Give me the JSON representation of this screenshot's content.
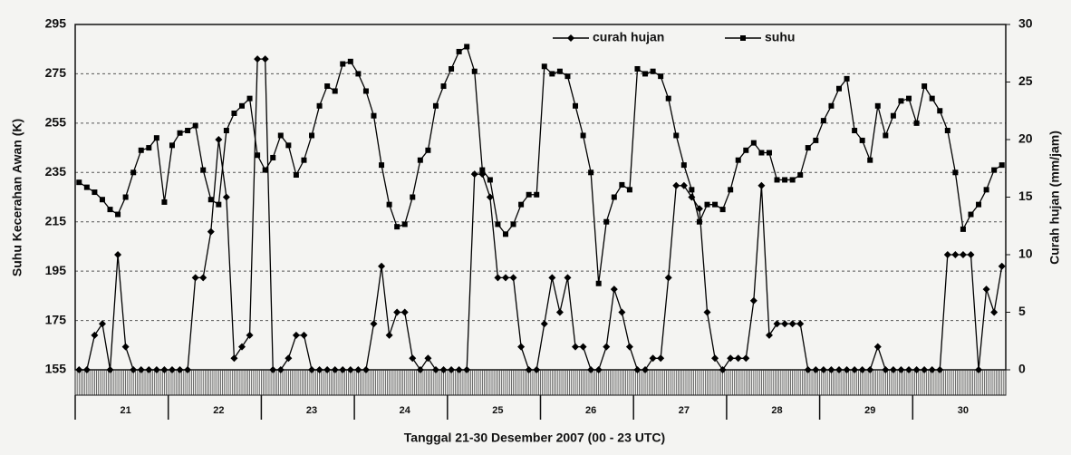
{
  "chart_data": {
    "type": "line",
    "x_label": "Tanggal 21-30 Desember 2007 (00 - 23 UTC)",
    "y_label": "Suhu Kecerahan Awan (K)",
    "y2_label": "Curah hujan (mm/jam)",
    "categories": [
      null,
      null,
      null,
      null,
      null,
      null,
      "21",
      null,
      null,
      null,
      null,
      null,
      null,
      null,
      null,
      null,
      null,
      null,
      "22",
      null,
      null,
      null,
      null,
      null,
      null,
      null,
      null,
      null,
      null,
      null,
      "23",
      null,
      null,
      null,
      null,
      null,
      null,
      null,
      null,
      null,
      null,
      null,
      "24",
      null,
      null,
      null,
      null,
      null,
      null,
      null,
      null,
      null,
      null,
      null,
      "25",
      null,
      null,
      null,
      null,
      null,
      null,
      null,
      null,
      null,
      null,
      null,
      "26",
      null,
      null,
      null,
      null,
      null,
      null,
      null,
      null,
      null,
      null,
      null,
      "27",
      null,
      null,
      null,
      null,
      null,
      null,
      null,
      null,
      null,
      null,
      null,
      "28",
      null,
      null,
      null,
      null,
      null,
      null,
      null,
      null,
      null,
      null,
      null,
      "29",
      null,
      null,
      null,
      null,
      null,
      null,
      null,
      null,
      null,
      null,
      null,
      "30",
      null,
      null,
      null,
      null,
      null
    ],
    "series": [
      {
        "name": "curah hujan",
        "color": "#000000",
        "marker": "diamond",
        "axis": "y2",
        "values": [
          0,
          0,
          3,
          4,
          0,
          10,
          2,
          0,
          0,
          0,
          0,
          0,
          0,
          0,
          0,
          8,
          8,
          12,
          20,
          15,
          1,
          2,
          3,
          27,
          27,
          0,
          0,
          1,
          3,
          3,
          0,
          0,
          0,
          0,
          0,
          0,
          0,
          0,
          4,
          9,
          3,
          5,
          5,
          1,
          0,
          1,
          0,
          0,
          0,
          0,
          0,
          17,
          17,
          15,
          8,
          8,
          8,
          2,
          0,
          0,
          4,
          8,
          5,
          8,
          2,
          2,
          0,
          0,
          2,
          7,
          5,
          2,
          0,
          0,
          1,
          1,
          8,
          16,
          16,
          15,
          14,
          5,
          1,
          0,
          1,
          1,
          1,
          6,
          16,
          3,
          4,
          4,
          4,
          4,
          0,
          0,
          0,
          0,
          0,
          0,
          0,
          0,
          0,
          2,
          0,
          0,
          0,
          0,
          0,
          0,
          0,
          0,
          10,
          10,
          10,
          10,
          0,
          7,
          5,
          9
        ]
      },
      {
        "name": "suhu",
        "color": "#000000",
        "marker": "square",
        "axis": "y",
        "values": [
          231,
          229,
          227,
          224,
          220,
          218,
          225,
          235,
          244,
          245,
          249,
          223,
          246,
          251,
          252,
          254,
          236,
          224,
          222,
          252,
          259,
          262,
          265,
          242,
          236,
          241,
          250,
          246,
          234,
          240,
          250,
          262,
          270,
          268,
          279,
          280,
          275,
          268,
          258,
          238,
          222,
          213,
          214,
          225,
          240,
          244,
          262,
          270,
          277,
          284,
          286,
          276,
          236,
          232,
          214,
          210,
          214,
          222,
          226,
          226,
          278,
          275,
          276,
          274,
          262,
          250,
          235,
          190,
          215,
          225,
          230,
          228,
          277,
          275,
          276,
          274,
          265,
          250,
          238,
          228,
          215,
          222,
          222,
          220,
          228,
          240,
          244,
          247,
          243,
          243,
          232,
          232,
          232,
          234,
          245,
          248,
          256,
          262,
          269,
          273,
          252,
          248,
          240,
          262,
          250,
          258,
          264,
          265,
          255,
          270,
          265,
          260,
          252,
          235,
          212,
          218,
          222,
          228,
          236,
          238
        ]
      }
    ],
    "ylim": [
      155,
      295
    ],
    "yticks": [
      155,
      175,
      195,
      215,
      235,
      255,
      275,
      295
    ],
    "y2lim": [
      0,
      30
    ],
    "y2ticks": [
      0,
      5,
      10,
      15,
      20,
      25,
      30
    ],
    "grid": true,
    "legend": "top"
  }
}
